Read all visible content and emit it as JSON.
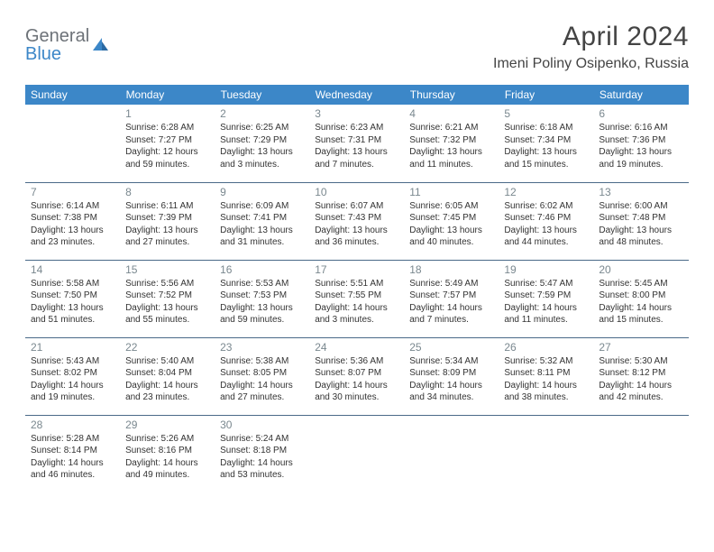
{
  "logo": {
    "line1": "General",
    "line2": "Blue"
  },
  "title": "April 2024",
  "location": "Imeni Poliny Osipenko, Russia",
  "colors": {
    "header_bg": "#3c87c8",
    "header_text": "#ffffff",
    "border": "#4a6a88",
    "daynum": "#7a888f",
    "body_text": "#333333",
    "logo_gray": "#6d7278",
    "logo_blue": "#3c87c8",
    "page_bg": "#ffffff"
  },
  "day_headers": [
    "Sunday",
    "Monday",
    "Tuesday",
    "Wednesday",
    "Thursday",
    "Friday",
    "Saturday"
  ],
  "weeks": [
    [
      null,
      {
        "n": "1",
        "sr": "6:28 AM",
        "ss": "7:27 PM",
        "dl": "12 hours and 59 minutes."
      },
      {
        "n": "2",
        "sr": "6:25 AM",
        "ss": "7:29 PM",
        "dl": "13 hours and 3 minutes."
      },
      {
        "n": "3",
        "sr": "6:23 AM",
        "ss": "7:31 PM",
        "dl": "13 hours and 7 minutes."
      },
      {
        "n": "4",
        "sr": "6:21 AM",
        "ss": "7:32 PM",
        "dl": "13 hours and 11 minutes."
      },
      {
        "n": "5",
        "sr": "6:18 AM",
        "ss": "7:34 PM",
        "dl": "13 hours and 15 minutes."
      },
      {
        "n": "6",
        "sr": "6:16 AM",
        "ss": "7:36 PM",
        "dl": "13 hours and 19 minutes."
      }
    ],
    [
      {
        "n": "7",
        "sr": "6:14 AM",
        "ss": "7:38 PM",
        "dl": "13 hours and 23 minutes."
      },
      {
        "n": "8",
        "sr": "6:11 AM",
        "ss": "7:39 PM",
        "dl": "13 hours and 27 minutes."
      },
      {
        "n": "9",
        "sr": "6:09 AM",
        "ss": "7:41 PM",
        "dl": "13 hours and 31 minutes."
      },
      {
        "n": "10",
        "sr": "6:07 AM",
        "ss": "7:43 PM",
        "dl": "13 hours and 36 minutes."
      },
      {
        "n": "11",
        "sr": "6:05 AM",
        "ss": "7:45 PM",
        "dl": "13 hours and 40 minutes."
      },
      {
        "n": "12",
        "sr": "6:02 AM",
        "ss": "7:46 PM",
        "dl": "13 hours and 44 minutes."
      },
      {
        "n": "13",
        "sr": "6:00 AM",
        "ss": "7:48 PM",
        "dl": "13 hours and 48 minutes."
      }
    ],
    [
      {
        "n": "14",
        "sr": "5:58 AM",
        "ss": "7:50 PM",
        "dl": "13 hours and 51 minutes."
      },
      {
        "n": "15",
        "sr": "5:56 AM",
        "ss": "7:52 PM",
        "dl": "13 hours and 55 minutes."
      },
      {
        "n": "16",
        "sr": "5:53 AM",
        "ss": "7:53 PM",
        "dl": "13 hours and 59 minutes."
      },
      {
        "n": "17",
        "sr": "5:51 AM",
        "ss": "7:55 PM",
        "dl": "14 hours and 3 minutes."
      },
      {
        "n": "18",
        "sr": "5:49 AM",
        "ss": "7:57 PM",
        "dl": "14 hours and 7 minutes."
      },
      {
        "n": "19",
        "sr": "5:47 AM",
        "ss": "7:59 PM",
        "dl": "14 hours and 11 minutes."
      },
      {
        "n": "20",
        "sr": "5:45 AM",
        "ss": "8:00 PM",
        "dl": "14 hours and 15 minutes."
      }
    ],
    [
      {
        "n": "21",
        "sr": "5:43 AM",
        "ss": "8:02 PM",
        "dl": "14 hours and 19 minutes."
      },
      {
        "n": "22",
        "sr": "5:40 AM",
        "ss": "8:04 PM",
        "dl": "14 hours and 23 minutes."
      },
      {
        "n": "23",
        "sr": "5:38 AM",
        "ss": "8:05 PM",
        "dl": "14 hours and 27 minutes."
      },
      {
        "n": "24",
        "sr": "5:36 AM",
        "ss": "8:07 PM",
        "dl": "14 hours and 30 minutes."
      },
      {
        "n": "25",
        "sr": "5:34 AM",
        "ss": "8:09 PM",
        "dl": "14 hours and 34 minutes."
      },
      {
        "n": "26",
        "sr": "5:32 AM",
        "ss": "8:11 PM",
        "dl": "14 hours and 38 minutes."
      },
      {
        "n": "27",
        "sr": "5:30 AM",
        "ss": "8:12 PM",
        "dl": "14 hours and 42 minutes."
      }
    ],
    [
      {
        "n": "28",
        "sr": "5:28 AM",
        "ss": "8:14 PM",
        "dl": "14 hours and 46 minutes."
      },
      {
        "n": "29",
        "sr": "5:26 AM",
        "ss": "8:16 PM",
        "dl": "14 hours and 49 minutes."
      },
      {
        "n": "30",
        "sr": "5:24 AM",
        "ss": "8:18 PM",
        "dl": "14 hours and 53 minutes."
      },
      null,
      null,
      null,
      null
    ]
  ],
  "labels": {
    "sunrise": "Sunrise:",
    "sunset": "Sunset:",
    "daylight": "Daylight:"
  }
}
